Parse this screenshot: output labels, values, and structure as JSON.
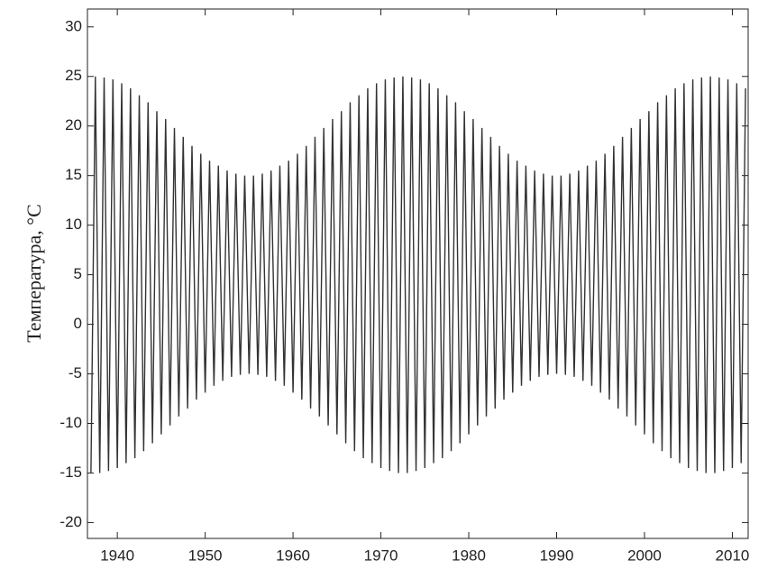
{
  "chart_data": {
    "type": "line",
    "ylabel": "Температура, °С",
    "xlim": [
      1936.6,
      2011.8
    ],
    "ylim": [
      -21.6,
      31.8
    ],
    "xticks": [
      1940,
      1950,
      1960,
      1970,
      1980,
      1990,
      2000,
      2010
    ],
    "yticks": [
      -20,
      -15,
      -10,
      -5,
      0,
      5,
      10,
      15,
      20,
      25,
      30
    ],
    "color": "#333333",
    "x": [
      1937,
      1937.5,
      1938,
      1938.5,
      1939,
      1939.5,
      1940,
      1940.5,
      1941,
      1941.5,
      1942,
      1942.5,
      1943,
      1943.5,
      1944,
      1944.5,
      1945,
      1945.5,
      1946,
      1946.5,
      1947,
      1947.5,
      1948,
      1948.5,
      1949,
      1949.5,
      1950,
      1950.5,
      1951,
      1951.5,
      1952,
      1952.5,
      1953,
      1953.5,
      1954,
      1954.5,
      1955,
      1955.5,
      1956,
      1956.5,
      1957,
      1957.5,
      1958,
      1958.5,
      1959,
      1959.5,
      1960,
      1960.5,
      1961,
      1961.5,
      1962,
      1962.5,
      1963,
      1963.5,
      1964,
      1964.5,
      1965,
      1965.5,
      1966,
      1966.5,
      1967,
      1967.5,
      1968,
      1968.5,
      1969,
      1969.5,
      1970,
      1970.5,
      1971,
      1971.5,
      1972,
      1972.5,
      1973,
      1973.5,
      1974,
      1974.5,
      1975,
      1975.5,
      1976,
      1976.5,
      1977,
      1977.5,
      1978,
      1978.5,
      1979,
      1979.5,
      1980,
      1980.5,
      1981,
      1981.5,
      1982,
      1982.5,
      1983,
      1983.5,
      1984,
      1984.5,
      1985,
      1985.5,
      1986,
      1986.5,
      1987,
      1987.5,
      1988,
      1988.5,
      1989,
      1989.5,
      1990,
      1990.5,
      1991,
      1991.5,
      1992,
      1992.5,
      1993,
      1993.5,
      1994,
      1994.5,
      1995,
      1995.5,
      1996,
      1996.5,
      1997,
      1997.5,
      1998,
      1998.5,
      1999,
      1999.5,
      2000,
      2000.5,
      2001,
      2001.5,
      2002,
      2002.5,
      2003,
      2003.5,
      2004,
      2004.5,
      2005,
      2005.5,
      2006,
      2006.5,
      2007,
      2007.5,
      2008,
      2008.5,
      2009,
      2009.5,
      2010,
      2010.5,
      2011,
      2011.5
    ],
    "values": [
      -15,
      25,
      -15,
      24.9,
      -14.8,
      24.7,
      -14.5,
      24.3,
      -14,
      23.8,
      -13.5,
      23.1,
      -12.8,
      22.4,
      -12,
      21.5,
      -11.1,
      20.7,
      -10.2,
      19.8,
      -9.3,
      18.9,
      -8.5,
      18,
      -7.6,
      17.2,
      -6.9,
      16.5,
      -6.2,
      16,
      -5.7,
      15.5,
      -5.3,
      15.2,
      -5.1,
      15,
      -5,
      15,
      -5.1,
      15.2,
      -5.3,
      15.5,
      -5.7,
      16,
      -6.2,
      16.5,
      -6.9,
      17.2,
      -7.6,
      18,
      -8.5,
      18.9,
      -9.3,
      19.8,
      -10.2,
      20.7,
      -11.1,
      21.5,
      -12,
      22.4,
      -12.8,
      23.1,
      -13.5,
      23.8,
      -14,
      24.3,
      -14.5,
      24.7,
      -14.8,
      24.9,
      -15,
      25,
      -15,
      24.9,
      -14.8,
      24.7,
      -14.5,
      24.3,
      -14,
      23.8,
      -13.5,
      23.1,
      -12.8,
      22.4,
      -12,
      21.5,
      -11.1,
      20.7,
      -10.2,
      19.8,
      -9.3,
      18.9,
      -8.5,
      18,
      -7.6,
      17.2,
      -6.9,
      16.5,
      -6.2,
      16,
      -5.7,
      15.5,
      -5.3,
      15.2,
      -5.1,
      15,
      -5,
      15,
      -5.1,
      15.2,
      -5.3,
      15.5,
      -5.7,
      16,
      -6.2,
      16.5,
      -6.9,
      17.2,
      -7.6,
      18,
      -8.5,
      18.9,
      -9.3,
      19.8,
      -10.2,
      20.7,
      -11.1,
      21.5,
      -12,
      22.4,
      -12.8,
      23.1,
      -13.5,
      23.8,
      -14,
      24.3,
      -14.5,
      24.7,
      -14.8,
      24.9,
      -15,
      25,
      -15,
      24.9,
      -14.8,
      24.7,
      -14.5,
      24.3,
      -14,
      23.8
    ]
  }
}
